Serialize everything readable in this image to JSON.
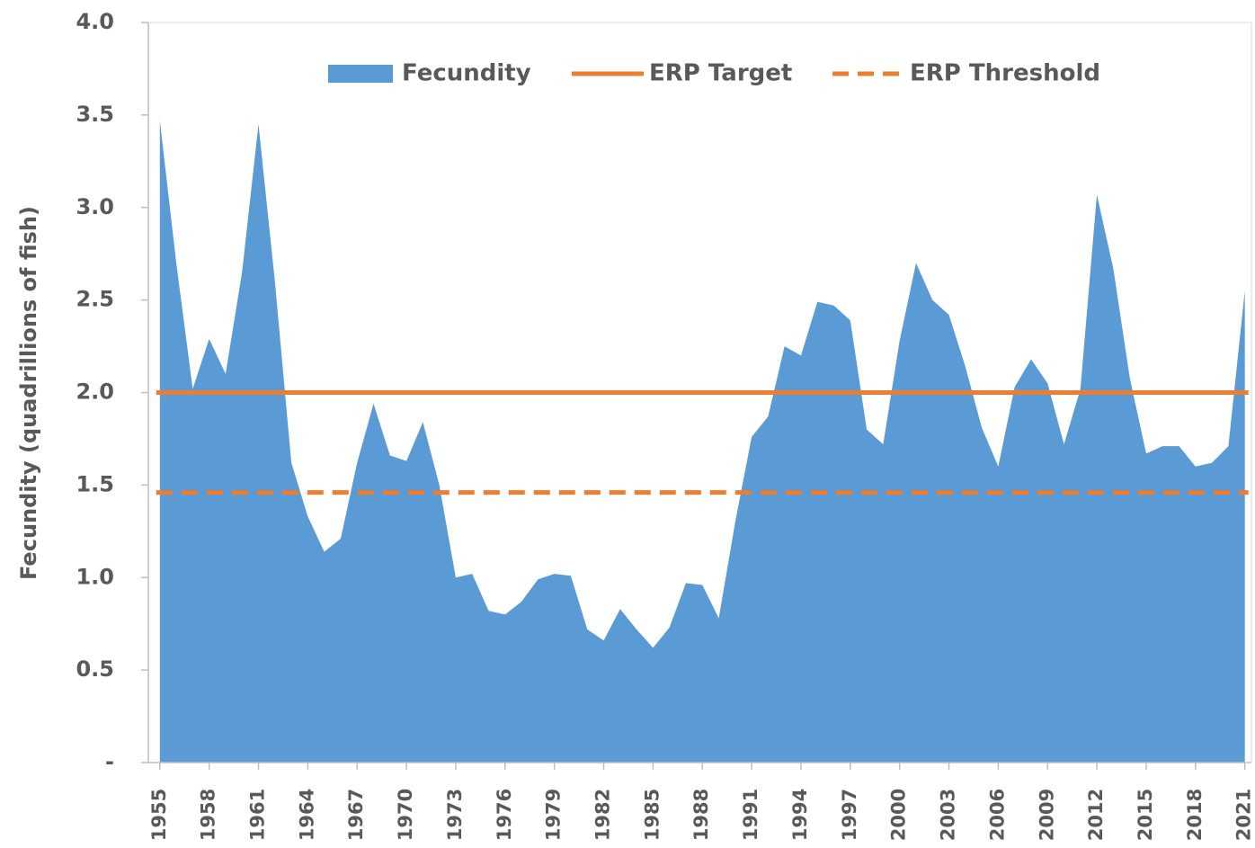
{
  "chart_data": {
    "type": "area",
    "y_label": "Fecundity (quadrillions of fish)",
    "x": [
      1955,
      1956,
      1957,
      1958,
      1959,
      1960,
      1961,
      1962,
      1963,
      1964,
      1965,
      1966,
      1967,
      1968,
      1969,
      1970,
      1971,
      1972,
      1973,
      1974,
      1975,
      1976,
      1977,
      1978,
      1979,
      1980,
      1981,
      1982,
      1983,
      1984,
      1985,
      1986,
      1987,
      1988,
      1989,
      1990,
      1991,
      1992,
      1993,
      1994,
      1995,
      1996,
      1997,
      1998,
      1999,
      2000,
      2001,
      2002,
      2003,
      2004,
      2005,
      2006,
      2007,
      2008,
      2009,
      2010,
      2011,
      2012,
      2013,
      2014,
      2015,
      2016,
      2017,
      2018,
      2019,
      2020,
      2021
    ],
    "series": [
      {
        "name": "Fecundity",
        "color": "#5b9bd5",
        "values": [
          3.47,
          2.7,
          2.02,
          2.29,
          2.1,
          2.65,
          3.45,
          2.6,
          1.62,
          1.33,
          1.14,
          1.21,
          1.62,
          1.94,
          1.66,
          1.63,
          1.84,
          1.5,
          1.0,
          1.02,
          0.82,
          0.8,
          0.87,
          0.99,
          1.02,
          1.01,
          0.72,
          0.66,
          0.83,
          0.72,
          0.62,
          0.73,
          0.97,
          0.96,
          0.78,
          1.3,
          1.76,
          1.87,
          2.25,
          2.2,
          2.49,
          2.47,
          2.39,
          1.8,
          1.72,
          2.28,
          2.7,
          2.5,
          2.42,
          2.14,
          1.81,
          1.6,
          2.03,
          2.18,
          2.05,
          1.72,
          2.02,
          3.07,
          2.67,
          2.08,
          1.67,
          1.71,
          1.71,
          1.6,
          1.62,
          1.71,
          2.55
        ]
      }
    ],
    "reference_lines": [
      {
        "name": "ERP Target",
        "color": "#ed7d31",
        "value": 2.0,
        "dash": false
      },
      {
        "name": "ERP Threshold",
        "color": "#ed7d31",
        "value": 1.46,
        "dash": true
      }
    ],
    "xlim": [
      1954.3,
      2021.4
    ],
    "xticks": [
      1955,
      1958,
      1961,
      1964,
      1967,
      1970,
      1973,
      1976,
      1979,
      1982,
      1985,
      1988,
      1991,
      1994,
      1997,
      2000,
      2003,
      2006,
      2009,
      2012,
      2015,
      2018,
      2021
    ],
    "ylim": [
      0,
      4
    ],
    "yticks": [
      {
        "value": 0,
        "label": "-"
      },
      0.5,
      {
        "value": 1,
        "label": "1.0"
      },
      1.5,
      {
        "value": 2,
        "label": "2.0"
      },
      2.5,
      {
        "value": 3,
        "label": "3.0"
      },
      3.5,
      {
        "value": 4,
        "label": "4.0"
      }
    ],
    "legend": "top"
  }
}
